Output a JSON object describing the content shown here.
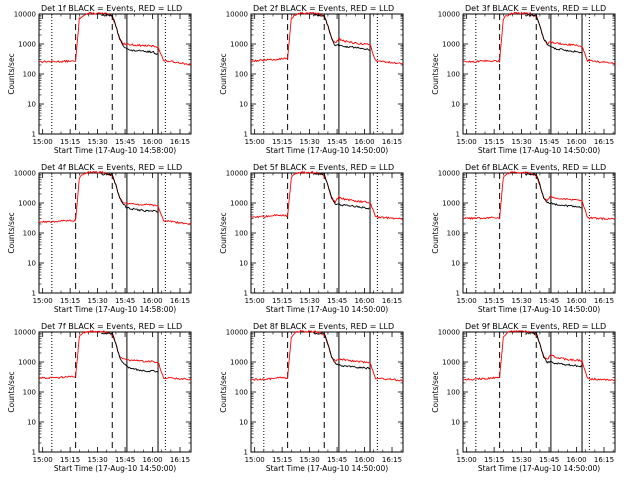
{
  "chart_data": [
    {
      "type": "line",
      "title": "Det 1f BLACK = Events, RED = LLD",
      "ylabel": "Counts/sec",
      "xlabel": "Start Time (17-Aug-10 14:58:00)",
      "x_ticks": [
        "15:00",
        "15:15",
        "15:30",
        "15:45",
        "16:00",
        "16:15"
      ],
      "y_ticks": [
        "1",
        "10",
        "100",
        "1000",
        "10000"
      ],
      "yscale": "log",
      "ylim": [
        1,
        10000
      ],
      "x": [
        "14:58",
        "15:05",
        "15:10",
        "15:15",
        "15:18",
        "15:20",
        "15:22",
        "15:25",
        "15:28",
        "15:32",
        "15:35",
        "15:38",
        "15:40",
        "15:42",
        "15:44",
        "15:46",
        "15:48",
        "15:52",
        "15:56",
        "16:00",
        "16:03",
        "16:06",
        "16:10",
        "16:15",
        "16:21"
      ],
      "series": [
        {
          "name": "Events",
          "color": "#000000",
          "values": [
            null,
            null,
            null,
            null,
            null,
            null,
            null,
            null,
            null,
            9000,
            9000,
            9000,
            4000,
            1500,
            900,
            700,
            600,
            600,
            550,
            550,
            450,
            null,
            null,
            null,
            null
          ]
        },
        {
          "name": "LLD",
          "color": "#ff0000",
          "values": [
            260,
            260,
            260,
            270,
            260,
            7000,
            9000,
            10500,
            10500,
            10500,
            10000,
            8000,
            4000,
            1500,
            1000,
            1000,
            950,
            900,
            880,
            850,
            800,
            280,
            260,
            240,
            200
          ]
        }
      ]
    },
    {
      "type": "line",
      "title": "Det 2f BLACK = Events, RED = LLD",
      "ylabel": "Counts/sec",
      "xlabel": "Start Time (17-Aug-10 14:50:00)",
      "x_ticks": [
        "15:00",
        "15:15",
        "15:30",
        "15:45",
        "16:00",
        "16:15"
      ],
      "y_ticks": [
        "1",
        "10",
        "100",
        "1000",
        "10000"
      ],
      "yscale": "log",
      "ylim": [
        1,
        10000
      ],
      "x": [
        "14:58",
        "15:05",
        "15:10",
        "15:15",
        "15:18",
        "15:20",
        "15:22",
        "15:25",
        "15:28",
        "15:32",
        "15:35",
        "15:38",
        "15:40",
        "15:42",
        "15:44",
        "15:46",
        "15:48",
        "15:52",
        "15:56",
        "16:00",
        "16:03",
        "16:06",
        "16:10",
        "16:15",
        "16:21"
      ],
      "series": [
        {
          "name": "Events",
          "color": "#000000",
          "values": [
            null,
            null,
            null,
            null,
            null,
            null,
            null,
            null,
            null,
            9000,
            9000,
            9000,
            4000,
            1500,
            900,
            900,
            850,
            800,
            750,
            700,
            650,
            null,
            null,
            null,
            null
          ]
        },
        {
          "name": "LLD",
          "color": "#ff0000",
          "values": [
            270,
            290,
            300,
            330,
            320,
            7000,
            9500,
            10500,
            10500,
            10500,
            10000,
            8000,
            4000,
            1500,
            1100,
            1500,
            1300,
            1150,
            1050,
            1000,
            950,
            280,
            260,
            240,
            220
          ]
        }
      ]
    },
    {
      "type": "line",
      "title": "Det 3f BLACK = Events, RED = LLD",
      "ylabel": "Counts/sec",
      "xlabel": "Start Time (17-Aug-10 14:50:00)",
      "x_ticks": [
        "15:00",
        "15:15",
        "15:30",
        "15:45",
        "16:00",
        "16:15"
      ],
      "y_ticks": [
        "1",
        "10",
        "100",
        "1000",
        "10000"
      ],
      "yscale": "log",
      "ylim": [
        1,
        10000
      ],
      "x": [
        "14:58",
        "15:05",
        "15:10",
        "15:15",
        "15:18",
        "15:20",
        "15:22",
        "15:25",
        "15:28",
        "15:32",
        "15:35",
        "15:38",
        "15:40",
        "15:42",
        "15:44",
        "15:46",
        "15:48",
        "15:52",
        "15:56",
        "16:00",
        "16:03",
        "16:06",
        "16:10",
        "16:15",
        "16:21"
      ],
      "series": [
        {
          "name": "Events",
          "color": "#000000",
          "values": [
            null,
            null,
            null,
            null,
            null,
            null,
            null,
            null,
            null,
            9000,
            9000,
            9000,
            4000,
            1500,
            1000,
            800,
            700,
            650,
            600,
            550,
            500,
            null,
            null,
            null,
            null
          ]
        },
        {
          "name": "LLD",
          "color": "#ff0000",
          "values": [
            260,
            260,
            270,
            280,
            270,
            7000,
            9000,
            10500,
            10500,
            10500,
            10000,
            8000,
            4000,
            1500,
            1000,
            1200,
            1100,
            1000,
            950,
            900,
            850,
            280,
            260,
            250,
            220
          ]
        }
      ]
    },
    {
      "type": "line",
      "title": "Det 4f BLACK = Events, RED = LLD",
      "ylabel": "Counts/sec",
      "xlabel": "Start Time (17-Aug-10 14:58:00)",
      "x_ticks": [
        "15:00",
        "15:15",
        "15:30",
        "15:45",
        "16:00",
        "16:15"
      ],
      "y_ticks": [
        "1",
        "10",
        "100",
        "1000",
        "10000"
      ],
      "yscale": "log",
      "ylim": [
        1,
        10000
      ],
      "x": [
        "14:58",
        "15:05",
        "15:10",
        "15:15",
        "15:18",
        "15:20",
        "15:22",
        "15:25",
        "15:28",
        "15:32",
        "15:35",
        "15:38",
        "15:40",
        "15:42",
        "15:44",
        "15:46",
        "15:48",
        "15:52",
        "15:56",
        "16:00",
        "16:03",
        "16:06",
        "16:10",
        "16:15",
        "16:21"
      ],
      "series": [
        {
          "name": "Events",
          "color": "#000000",
          "values": [
            null,
            null,
            null,
            null,
            null,
            null,
            null,
            null,
            null,
            9000,
            9000,
            9000,
            4000,
            1500,
            900,
            700,
            650,
            600,
            550,
            550,
            500,
            null,
            null,
            null,
            null
          ]
        },
        {
          "name": "LLD",
          "color": "#ff0000",
          "values": [
            230,
            240,
            250,
            260,
            260,
            7000,
            9000,
            10500,
            10500,
            10500,
            10000,
            8000,
            4000,
            1500,
            1000,
            1000,
            950,
            900,
            880,
            850,
            800,
            260,
            240,
            220,
            200
          ]
        }
      ]
    },
    {
      "type": "line",
      "title": "Det 5f BLACK = Events, RED = LLD",
      "ylabel": "Counts/sec",
      "xlabel": "Start Time (17-Aug-10 14:50:00)",
      "x_ticks": [
        "15:00",
        "15:15",
        "15:30",
        "15:45",
        "16:00",
        "16:15"
      ],
      "y_ticks": [
        "1",
        "10",
        "100",
        "1000",
        "10000"
      ],
      "yscale": "log",
      "ylim": [
        1,
        10000
      ],
      "x": [
        "14:58",
        "15:05",
        "15:10",
        "15:15",
        "15:18",
        "15:20",
        "15:22",
        "15:25",
        "15:28",
        "15:32",
        "15:35",
        "15:38",
        "15:40",
        "15:42",
        "15:44",
        "15:46",
        "15:48",
        "15:52",
        "15:56",
        "16:00",
        "16:03",
        "16:06",
        "16:10",
        "16:15",
        "16:21"
      ],
      "series": [
        {
          "name": "Events",
          "color": "#000000",
          "values": [
            null,
            null,
            null,
            null,
            null,
            null,
            null,
            null,
            null,
            9000,
            9000,
            9000,
            4000,
            1500,
            900,
            900,
            850,
            800,
            750,
            700,
            650,
            null,
            null,
            null,
            null
          ]
        },
        {
          "name": "LLD",
          "color": "#ff0000",
          "values": [
            330,
            350,
            380,
            400,
            370,
            7000,
            9500,
            10500,
            10500,
            10500,
            10000,
            8000,
            4000,
            1500,
            1100,
            1600,
            1400,
            1250,
            1150,
            1100,
            1050,
            350,
            330,
            310,
            290
          ]
        }
      ]
    },
    {
      "type": "line",
      "title": "Det 6f BLACK = Events, RED = LLD",
      "ylabel": "Counts/sec",
      "xlabel": "Start Time (17-Aug-10 14:50:00)",
      "x_ticks": [
        "15:00",
        "15:15",
        "15:30",
        "15:45",
        "16:00",
        "16:15"
      ],
      "y_ticks": [
        "1",
        "10",
        "100",
        "1000",
        "10000"
      ],
      "yscale": "log",
      "ylim": [
        1,
        10000
      ],
      "x": [
        "14:58",
        "15:05",
        "15:10",
        "15:15",
        "15:18",
        "15:20",
        "15:22",
        "15:25",
        "15:28",
        "15:32",
        "15:35",
        "15:38",
        "15:40",
        "15:42",
        "15:44",
        "15:46",
        "15:48",
        "15:52",
        "15:56",
        "16:00",
        "16:03",
        "16:06",
        "16:10",
        "16:15",
        "16:21"
      ],
      "series": [
        {
          "name": "Events",
          "color": "#000000",
          "values": [
            null,
            null,
            null,
            null,
            null,
            null,
            null,
            null,
            null,
            9000,
            9000,
            9000,
            4000,
            1500,
            1000,
            1000,
            900,
            850,
            800,
            750,
            700,
            null,
            null,
            null,
            null
          ]
        },
        {
          "name": "LLD",
          "color": "#ff0000",
          "values": [
            300,
            310,
            320,
            330,
            320,
            7000,
            9500,
            10500,
            10500,
            10500,
            10000,
            8000,
            4000,
            1500,
            1200,
            1700,
            1500,
            1400,
            1300,
            1250,
            1200,
            320,
            310,
            300,
            290
          ]
        }
      ]
    },
    {
      "type": "line",
      "title": "Det 7f BLACK = Events, RED = LLD",
      "ylabel": "Counts/sec",
      "xlabel": "Start Time (17-Aug-10 14:50:00)",
      "x_ticks": [
        "15:00",
        "15:15",
        "15:30",
        "15:45",
        "16:00",
        "16:15"
      ],
      "y_ticks": [
        "1",
        "10",
        "100",
        "1000",
        "10000"
      ],
      "yscale": "log",
      "ylim": [
        1,
        10000
      ],
      "x": [
        "14:58",
        "15:05",
        "15:10",
        "15:15",
        "15:18",
        "15:20",
        "15:22",
        "15:25",
        "15:28",
        "15:32",
        "15:35",
        "15:38",
        "15:40",
        "15:42",
        "15:44",
        "15:46",
        "15:48",
        "15:52",
        "15:56",
        "16:00",
        "16:03",
        "16:06",
        "16:10",
        "16:15",
        "16:21"
      ],
      "series": [
        {
          "name": "Events",
          "color": "#000000",
          "values": [
            null,
            null,
            null,
            null,
            null,
            null,
            null,
            null,
            null,
            9000,
            9000,
            9000,
            4000,
            1500,
            900,
            700,
            600,
            550,
            500,
            500,
            450,
            null,
            null,
            null,
            null
          ]
        },
        {
          "name": "LLD",
          "color": "#ff0000",
          "values": [
            300,
            300,
            310,
            320,
            320,
            7000,
            9500,
            10500,
            10500,
            10500,
            10000,
            8000,
            4000,
            1500,
            1200,
            1200,
            1150,
            1100,
            1050,
            1050,
            1000,
            300,
            290,
            280,
            260
          ]
        }
      ]
    },
    {
      "type": "line",
      "title": "Det 8f BLACK = Events, RED = LLD",
      "ylabel": "Counts/sec",
      "xlabel": "Start Time (17-Aug-10 14:50:00)",
      "x_ticks": [
        "15:00",
        "15:15",
        "15:30",
        "15:45",
        "16:00",
        "16:15"
      ],
      "y_ticks": [
        "1",
        "10",
        "100",
        "1000",
        "10000"
      ],
      "yscale": "log",
      "ylim": [
        1,
        10000
      ],
      "x": [
        "14:58",
        "15:05",
        "15:10",
        "15:15",
        "15:18",
        "15:20",
        "15:22",
        "15:25",
        "15:28",
        "15:32",
        "15:35",
        "15:38",
        "15:40",
        "15:42",
        "15:44",
        "15:46",
        "15:48",
        "15:52",
        "15:56",
        "16:00",
        "16:03",
        "16:06",
        "16:10",
        "16:15",
        "16:21"
      ],
      "series": [
        {
          "name": "Events",
          "color": "#000000",
          "values": [
            null,
            null,
            null,
            null,
            null,
            null,
            null,
            null,
            null,
            9000,
            9000,
            9000,
            4000,
            1500,
            900,
            800,
            750,
            700,
            650,
            650,
            600,
            null,
            null,
            null,
            null
          ]
        },
        {
          "name": "LLD",
          "color": "#ff0000",
          "values": [
            260,
            270,
            280,
            300,
            290,
            7000,
            9500,
            10500,
            10500,
            10500,
            10000,
            8000,
            4000,
            1500,
            1100,
            1300,
            1200,
            1100,
            1050,
            1000,
            950,
            280,
            270,
            260,
            240
          ]
        }
      ]
    },
    {
      "type": "line",
      "title": "Det 9f BLACK = Events, RED = LLD",
      "ylabel": "Counts/sec",
      "xlabel": "Start Time (17-Aug-10 14:50:00)",
      "x_ticks": [
        "15:00",
        "15:15",
        "15:30",
        "15:45",
        "16:00",
        "16:15"
      ],
      "y_ticks": [
        "1",
        "10",
        "100",
        "1000",
        "10000"
      ],
      "yscale": "log",
      "ylim": [
        1,
        10000
      ],
      "x": [
        "14:58",
        "15:05",
        "15:10",
        "15:15",
        "15:18",
        "15:20",
        "15:22",
        "15:25",
        "15:28",
        "15:32",
        "15:35",
        "15:38",
        "15:40",
        "15:42",
        "15:44",
        "15:46",
        "15:48",
        "15:52",
        "15:56",
        "16:00",
        "16:03",
        "16:06",
        "16:10",
        "16:15",
        "16:21"
      ],
      "series": [
        {
          "name": "Events",
          "color": "#000000",
          "values": [
            null,
            null,
            null,
            null,
            null,
            null,
            null,
            null,
            null,
            9000,
            9000,
            9000,
            4000,
            1500,
            1000,
            1000,
            900,
            850,
            800,
            750,
            700,
            null,
            null,
            null,
            null
          ]
        },
        {
          "name": "LLD",
          "color": "#ff0000",
          "values": [
            260,
            270,
            280,
            300,
            290,
            7000,
            9500,
            10500,
            10500,
            10500,
            10000,
            8000,
            4000,
            1500,
            1200,
            1700,
            1500,
            1300,
            1200,
            1150,
            1100,
            280,
            270,
            260,
            240
          ]
        }
      ]
    }
  ],
  "marker_times": {
    "dotted": [
      "15:05",
      "16:07"
    ],
    "dashed": [
      "15:18",
      "15:38"
    ],
    "solid": [
      "15:46",
      "16:03"
    ]
  }
}
